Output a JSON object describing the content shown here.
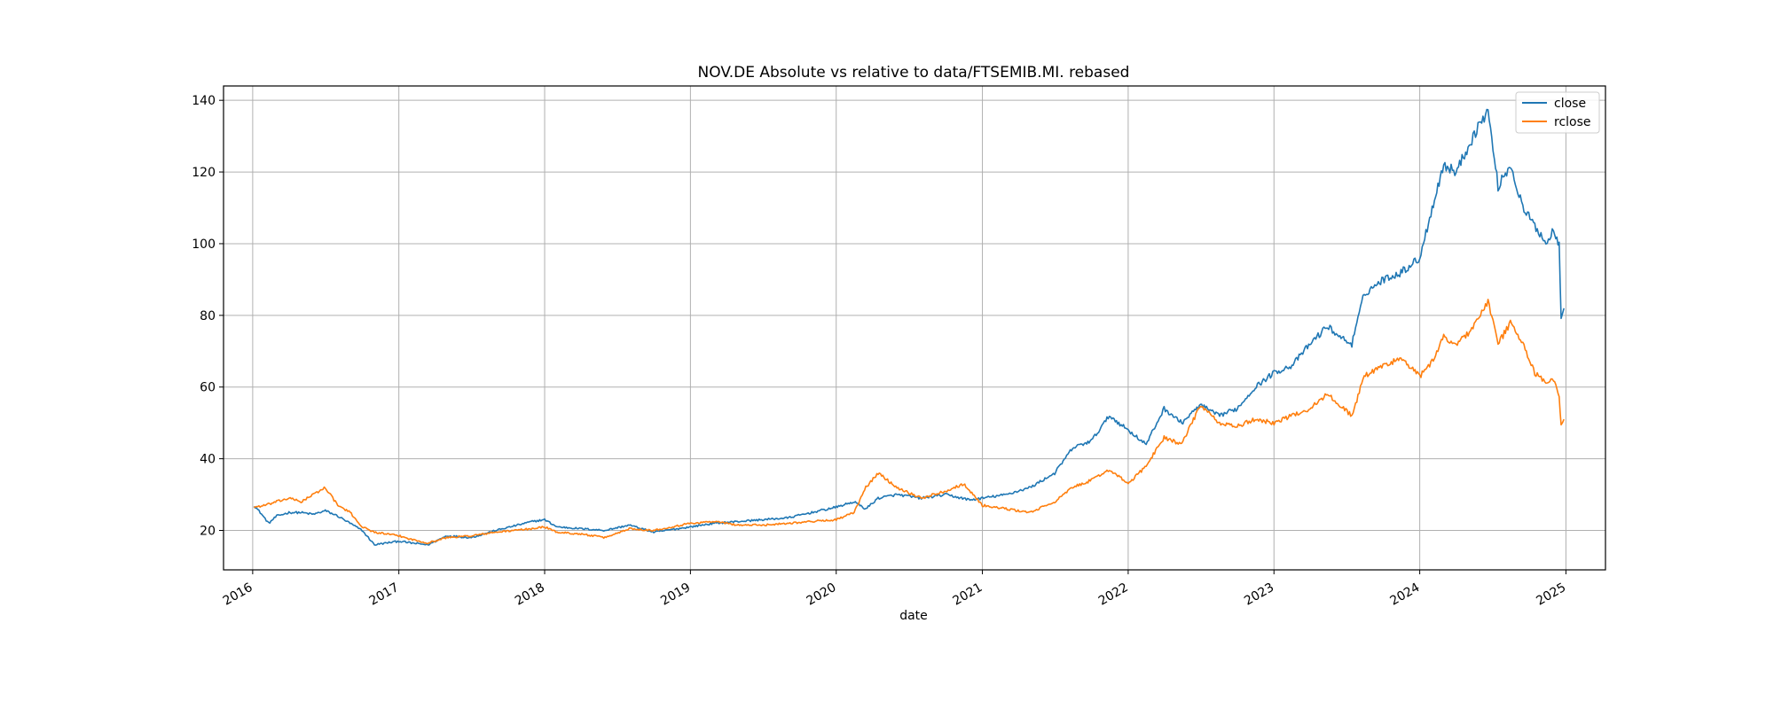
{
  "chart_data": {
    "type": "line",
    "title": "NOV.DE Absolute vs relative to data/FTSEMIB.MI. rebased",
    "xlabel": "date",
    "ylabel": "",
    "xlim": [
      "2015-10-20",
      "2025-04-10"
    ],
    "ylim": [
      9,
      144
    ],
    "grid": true,
    "legend_position": "top-right",
    "x_ticks": [
      "2016",
      "2017",
      "2018",
      "2019",
      "2020",
      "2021",
      "2022",
      "2023",
      "2024",
      "2025"
    ],
    "y_ticks": [
      20,
      40,
      60,
      80,
      100,
      120,
      140
    ],
    "colors": {
      "close": "#1f77b4",
      "rclose": "#ff7f0e"
    },
    "series": [
      {
        "name": "close",
        "points": [
          [
            "2016-01-04",
            27
          ],
          [
            "2016-01-20",
            25
          ],
          [
            "2016-02-10",
            22
          ],
          [
            "2016-03-01",
            24
          ],
          [
            "2016-04-01",
            25
          ],
          [
            "2016-05-01",
            25
          ],
          [
            "2016-06-01",
            24.5
          ],
          [
            "2016-07-01",
            25.5
          ],
          [
            "2016-08-01",
            24
          ],
          [
            "2016-09-01",
            22
          ],
          [
            "2016-10-01",
            20
          ],
          [
            "2016-11-01",
            16
          ],
          [
            "2016-12-01",
            16.5
          ],
          [
            "2017-01-01",
            17
          ],
          [
            "2017-02-01",
            16.5
          ],
          [
            "2017-03-15",
            16
          ],
          [
            "2017-05-01",
            18.5
          ],
          [
            "2017-07-01",
            18
          ],
          [
            "2017-09-01",
            20
          ],
          [
            "2017-12-01",
            22.5
          ],
          [
            "2018-01-01",
            23
          ],
          [
            "2018-02-01",
            21
          ],
          [
            "2018-04-01",
            20.5
          ],
          [
            "2018-06-01",
            20
          ],
          [
            "2018-08-01",
            21.5
          ],
          [
            "2018-10-01",
            19.5
          ],
          [
            "2019-01-01",
            21
          ],
          [
            "2019-03-01",
            22
          ],
          [
            "2019-05-01",
            22.5
          ],
          [
            "2019-07-01",
            23
          ],
          [
            "2019-09-01",
            23.5
          ],
          [
            "2019-11-01",
            25
          ],
          [
            "2020-01-01",
            26.5
          ],
          [
            "2020-02-15",
            28
          ],
          [
            "2020-03-15",
            26
          ],
          [
            "2020-04-15",
            29
          ],
          [
            "2020-06-01",
            30
          ],
          [
            "2020-08-01",
            29
          ],
          [
            "2020-10-01",
            30
          ],
          [
            "2020-12-01",
            28.5
          ],
          [
            "2021-01-01",
            29
          ],
          [
            "2021-03-01",
            30
          ],
          [
            "2021-05-01",
            32
          ],
          [
            "2021-07-01",
            36
          ],
          [
            "2021-08-15",
            43
          ],
          [
            "2021-10-01",
            45
          ],
          [
            "2021-11-15",
            52
          ],
          [
            "2022-01-01",
            48
          ],
          [
            "2022-02-15",
            44
          ],
          [
            "2022-04-01",
            54
          ],
          [
            "2022-05-15",
            50
          ],
          [
            "2022-07-01",
            55
          ],
          [
            "2022-08-15",
            52
          ],
          [
            "2022-10-01",
            54
          ],
          [
            "2022-11-15",
            60
          ],
          [
            "2023-01-01",
            64
          ],
          [
            "2023-02-15",
            66
          ],
          [
            "2023-04-01",
            72
          ],
          [
            "2023-05-15",
            77
          ],
          [
            "2023-06-15",
            74
          ],
          [
            "2023-07-15",
            72
          ],
          [
            "2023-08-15",
            86
          ],
          [
            "2023-10-01",
            90
          ],
          [
            "2023-11-15",
            92
          ],
          [
            "2024-01-01",
            96
          ],
          [
            "2024-02-01",
            110
          ],
          [
            "2024-03-01",
            122
          ],
          [
            "2024-04-01",
            120
          ],
          [
            "2024-05-01",
            127
          ],
          [
            "2024-06-01",
            134
          ],
          [
            "2024-06-20",
            137
          ],
          [
            "2024-07-15",
            116
          ],
          [
            "2024-08-15",
            122
          ],
          [
            "2024-09-15",
            110
          ],
          [
            "2024-10-15",
            105
          ],
          [
            "2024-11-15",
            100
          ],
          [
            "2024-12-01",
            104
          ],
          [
            "2024-12-15",
            100
          ],
          [
            "2024-12-20",
            80
          ],
          [
            "2024-12-27",
            82
          ]
        ]
      },
      {
        "name": "rclose",
        "points": [
          [
            "2016-01-04",
            26.5
          ],
          [
            "2016-02-01",
            27
          ],
          [
            "2016-03-01",
            28
          ],
          [
            "2016-04-01",
            29
          ],
          [
            "2016-05-01",
            28
          ],
          [
            "2016-06-01",
            30
          ],
          [
            "2016-07-01",
            32
          ],
          [
            "2016-08-01",
            27
          ],
          [
            "2016-09-01",
            25
          ],
          [
            "2016-10-01",
            21
          ],
          [
            "2016-11-01",
            19.5
          ],
          [
            "2016-12-01",
            19
          ],
          [
            "2017-01-01",
            18.5
          ],
          [
            "2017-02-01",
            17.5
          ],
          [
            "2017-03-15",
            16.5
          ],
          [
            "2017-05-01",
            18
          ],
          [
            "2017-07-01",
            18.5
          ],
          [
            "2017-09-01",
            19.5
          ],
          [
            "2017-12-01",
            20.5
          ],
          [
            "2018-01-01",
            21
          ],
          [
            "2018-02-01",
            19.5
          ],
          [
            "2018-04-01",
            19
          ],
          [
            "2018-06-01",
            18
          ],
          [
            "2018-08-01",
            20.5
          ],
          [
            "2018-10-01",
            20
          ],
          [
            "2019-01-01",
            22
          ],
          [
            "2019-03-01",
            22.5
          ],
          [
            "2019-05-01",
            21.5
          ],
          [
            "2019-07-01",
            21.5
          ],
          [
            "2019-09-01",
            22
          ],
          [
            "2019-11-01",
            22.5
          ],
          [
            "2020-01-01",
            23
          ],
          [
            "2020-02-15",
            25
          ],
          [
            "2020-03-15",
            32
          ],
          [
            "2020-04-15",
            36
          ],
          [
            "2020-06-01",
            32
          ],
          [
            "2020-08-01",
            29
          ],
          [
            "2020-10-01",
            31
          ],
          [
            "2020-11-15",
            33
          ],
          [
            "2021-01-01",
            27
          ],
          [
            "2021-03-01",
            26
          ],
          [
            "2021-05-01",
            25
          ],
          [
            "2021-07-01",
            28
          ],
          [
            "2021-08-15",
            32
          ],
          [
            "2021-10-01",
            34
          ],
          [
            "2021-11-15",
            37
          ],
          [
            "2022-01-01",
            33
          ],
          [
            "2022-02-15",
            38
          ],
          [
            "2022-04-01",
            46
          ],
          [
            "2022-05-15",
            44
          ],
          [
            "2022-07-01",
            55
          ],
          [
            "2022-08-15",
            50
          ],
          [
            "2022-10-01",
            49
          ],
          [
            "2022-11-15",
            51
          ],
          [
            "2023-01-01",
            50
          ],
          [
            "2023-02-15",
            52
          ],
          [
            "2023-04-01",
            54
          ],
          [
            "2023-05-15",
            58
          ],
          [
            "2023-06-15",
            55
          ],
          [
            "2023-07-15",
            52
          ],
          [
            "2023-08-15",
            63
          ],
          [
            "2023-10-01",
            66
          ],
          [
            "2023-11-15",
            68
          ],
          [
            "2024-01-01",
            63
          ],
          [
            "2024-02-01",
            67
          ],
          [
            "2024-03-01",
            74
          ],
          [
            "2024-04-01",
            72
          ],
          [
            "2024-05-01",
            75
          ],
          [
            "2024-06-01",
            80
          ],
          [
            "2024-06-20",
            84
          ],
          [
            "2024-07-15",
            72
          ],
          [
            "2024-08-15",
            78
          ],
          [
            "2024-09-15",
            72
          ],
          [
            "2024-10-15",
            64
          ],
          [
            "2024-11-15",
            61
          ],
          [
            "2024-12-01",
            62
          ],
          [
            "2024-12-15",
            58
          ],
          [
            "2024-12-20",
            49
          ],
          [
            "2024-12-27",
            51
          ]
        ]
      }
    ]
  }
}
